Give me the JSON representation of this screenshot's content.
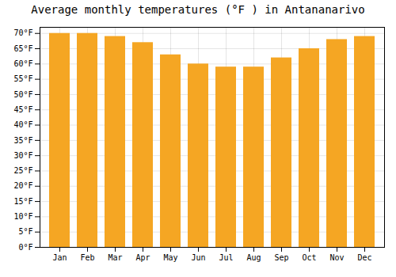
{
  "chart_data": {
    "type": "bar",
    "title": "Average monthly temperatures (°F ) in Antananarivo",
    "categories": [
      "Jan",
      "Feb",
      "Mar",
      "Apr",
      "May",
      "Jun",
      "Jul",
      "Aug",
      "Sep",
      "Oct",
      "Nov",
      "Dec"
    ],
    "values": [
      70,
      70,
      69,
      67,
      63,
      60,
      59,
      59,
      62,
      65,
      68,
      69
    ],
    "color": "#F5A623",
    "ylim": [
      0,
      72
    ],
    "yticks": [
      {
        "value": 0,
        "label": "0°F"
      },
      {
        "value": 5,
        "label": "5°F"
      },
      {
        "value": 10,
        "label": "10°F"
      },
      {
        "value": 15,
        "label": "15°F"
      },
      {
        "value": 20,
        "label": "20°F"
      },
      {
        "value": 25,
        "label": "25°F"
      },
      {
        "value": 30,
        "label": "30°F"
      },
      {
        "value": 35,
        "label": "35°F"
      },
      {
        "value": 40,
        "label": "40°F"
      },
      {
        "value": 45,
        "label": "45°F"
      },
      {
        "value": 50,
        "label": "50°F"
      },
      {
        "value": 55,
        "label": "55°F"
      },
      {
        "value": 60,
        "label": "60°F"
      },
      {
        "value": 65,
        "label": "65°F"
      },
      {
        "value": 70,
        "label": "70°F"
      }
    ],
    "grid": true
  }
}
